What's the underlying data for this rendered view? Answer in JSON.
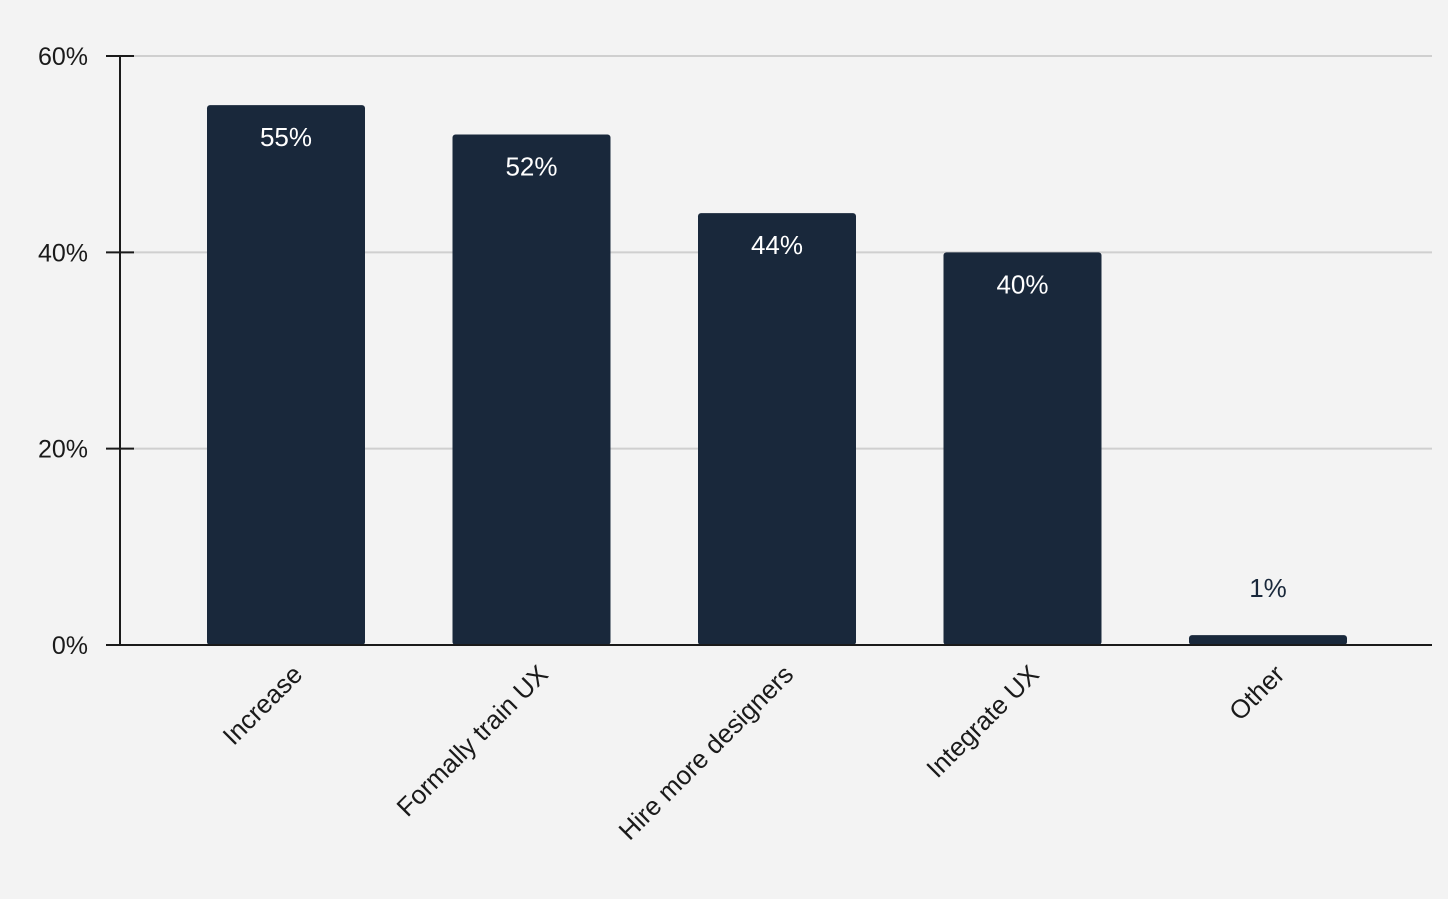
{
  "chart_data": {
    "type": "bar",
    "title": "",
    "xlabel": "",
    "ylabel": "",
    "categories": [
      "Increase",
      "Formally train UX",
      "Hire more designers",
      "Integrate UX",
      "Other"
    ],
    "values": [
      55,
      52,
      44,
      40,
      1
    ],
    "data_labels": [
      "55%",
      "52%",
      "44%",
      "40%",
      "1%"
    ],
    "ylim": [
      0,
      60
    ],
    "yticks": [
      0,
      20,
      40,
      60
    ],
    "ytick_labels": [
      "0%",
      "20%",
      "40%",
      "60%"
    ],
    "grid": true,
    "legend": "none",
    "colors": {
      "bar": "#19283b",
      "background": "#f3f3f3",
      "grid": "#cfcfcf",
      "axis": "#1a1a1a",
      "label_inside": "#ffffff",
      "label_outside": "#19283b"
    }
  }
}
